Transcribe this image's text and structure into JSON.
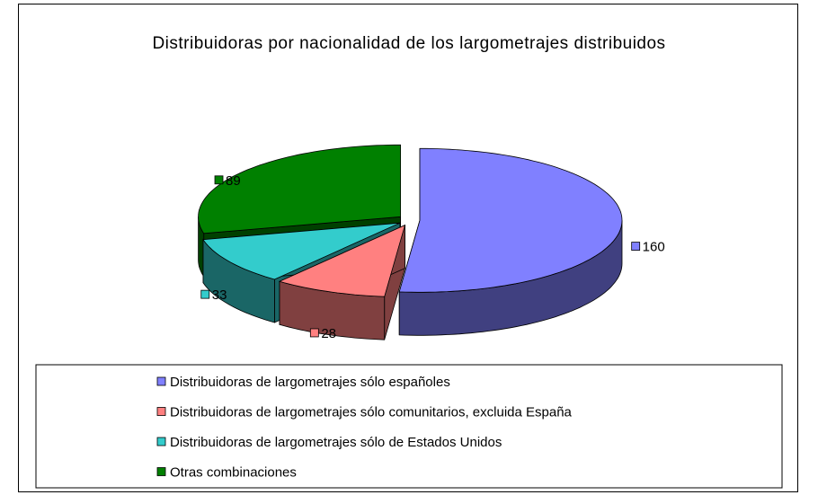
{
  "chart_data": {
    "type": "pie",
    "title": "Distribuidoras por nacionalidad de los largometrajes distribuidos",
    "categories": [
      "Distribuidoras de largometrajes sólo españoles",
      "Distribuidoras de largometrajes sólo comunitarios, excluida España",
      "Distribuidoras de largometrajes sólo de Estados Unidos",
      "Otras combinaciones"
    ],
    "values": [
      160,
      28,
      33,
      89
    ],
    "colors": [
      "#8080ff",
      "#ff8080",
      "#33cccc",
      "#008000"
    ],
    "legend": "bottom"
  }
}
